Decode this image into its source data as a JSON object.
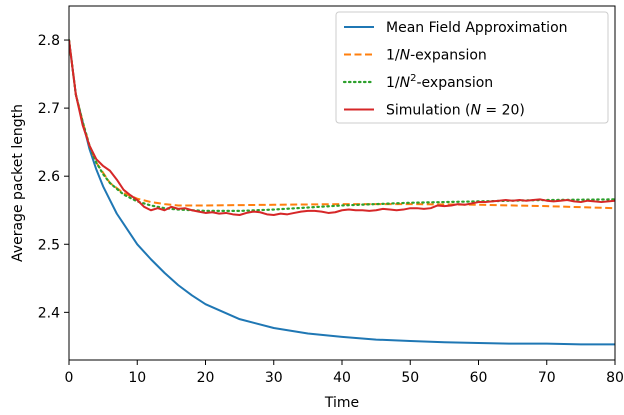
{
  "chart_data": {
    "type": "line",
    "title": "",
    "xlabel": "Time",
    "ylabel": "Average packet length",
    "xlim": [
      0,
      80
    ],
    "ylim": [
      2.33,
      2.85
    ],
    "xticks": [
      0,
      10,
      20,
      30,
      40,
      50,
      60,
      70,
      80
    ],
    "yticks": [
      2.4,
      2.5,
      2.6,
      2.7,
      2.8
    ],
    "grid": false,
    "legend_position": "top-right",
    "legend": [
      {
        "text": "Mean Field Approximation",
        "color": "#1f77b4",
        "style": "solid"
      },
      {
        "text": "1/N-expansion",
        "italic_part": "N",
        "color": "#ff7f0e",
        "style": "dashed"
      },
      {
        "text": "1/N²-expansion",
        "italic_part": "N",
        "superscript": "2",
        "color": "#2ca02c",
        "style": "dotted"
      },
      {
        "text": "Simulation (N = 20)",
        "italic_part": "N",
        "color": "#d62728",
        "style": "solid"
      }
    ],
    "series": [
      {
        "name": "Mean Field Approximation",
        "color": "#1f77b4",
        "style": "solid",
        "x": [
          0,
          1,
          2,
          3,
          4,
          5,
          6,
          7,
          8,
          10,
          12,
          14,
          16,
          18,
          20,
          25,
          30,
          35,
          40,
          45,
          50,
          55,
          60,
          65,
          70,
          75,
          80
        ],
        "y": [
          2.8,
          2.72,
          2.68,
          2.64,
          2.61,
          2.585,
          2.565,
          2.545,
          2.53,
          2.5,
          2.478,
          2.458,
          2.44,
          2.425,
          2.412,
          2.39,
          2.377,
          2.369,
          2.364,
          2.36,
          2.358,
          2.356,
          2.355,
          2.354,
          2.354,
          2.353,
          2.353
        ]
      },
      {
        "name": "1/N-expansion",
        "color": "#ff7f0e",
        "style": "dashed",
        "x": [
          0,
          1,
          2,
          3,
          4,
          5,
          6,
          8,
          10,
          12,
          14,
          16,
          20,
          30,
          40,
          50,
          60,
          70,
          80
        ],
        "y": [
          2.8,
          2.72,
          2.68,
          2.645,
          2.62,
          2.605,
          2.59,
          2.575,
          2.567,
          2.562,
          2.559,
          2.557,
          2.557,
          2.558,
          2.559,
          2.559,
          2.558,
          2.556,
          2.553
        ]
      },
      {
        "name": "1/N²-expansion",
        "color": "#2ca02c",
        "style": "dotted",
        "x": [
          0,
          1,
          2,
          3,
          4,
          5,
          6,
          8,
          10,
          12,
          14,
          16,
          20,
          25,
          30,
          35,
          40,
          50,
          60,
          70,
          80
        ],
        "y": [
          2.8,
          2.72,
          2.68,
          2.645,
          2.62,
          2.603,
          2.59,
          2.573,
          2.563,
          2.557,
          2.553,
          2.551,
          2.549,
          2.549,
          2.551,
          2.554,
          2.557,
          2.561,
          2.563,
          2.565,
          2.566
        ]
      },
      {
        "name": "Simulation (N = 20)",
        "color": "#d62728",
        "style": "solid",
        "x": [
          0,
          1,
          2,
          3,
          4,
          5,
          6,
          7,
          8,
          9,
          10,
          11,
          12,
          13,
          14,
          15,
          16,
          17,
          18,
          19,
          20,
          21,
          22,
          23,
          24,
          25,
          26,
          27,
          28,
          29,
          30,
          31,
          32,
          33,
          34,
          35,
          36,
          37,
          38,
          39,
          40,
          41,
          42,
          43,
          44,
          45,
          46,
          47,
          48,
          49,
          50,
          51,
          52,
          53,
          54,
          55,
          56,
          57,
          58,
          59,
          60,
          61,
          62,
          63,
          64,
          65,
          66,
          67,
          68,
          69,
          70,
          71,
          72,
          73,
          74,
          75,
          76,
          77,
          78,
          79,
          80
        ],
        "y": [
          2.8,
          2.72,
          2.675,
          2.645,
          2.625,
          2.615,
          2.608,
          2.595,
          2.58,
          2.572,
          2.565,
          2.555,
          2.55,
          2.553,
          2.55,
          2.555,
          2.552,
          2.553,
          2.55,
          2.548,
          2.546,
          2.547,
          2.545,
          2.546,
          2.544,
          2.543,
          2.546,
          2.548,
          2.547,
          2.544,
          2.543,
          2.545,
          2.544,
          2.546,
          2.548,
          2.549,
          2.549,
          2.548,
          2.546,
          2.547,
          2.55,
          2.551,
          2.55,
          2.55,
          2.549,
          2.55,
          2.552,
          2.551,
          2.55,
          2.551,
          2.553,
          2.553,
          2.552,
          2.553,
          2.557,
          2.556,
          2.557,
          2.559,
          2.558,
          2.56,
          2.562,
          2.562,
          2.563,
          2.564,
          2.565,
          2.564,
          2.565,
          2.564,
          2.565,
          2.566,
          2.564,
          2.563,
          2.564,
          2.565,
          2.563,
          2.562,
          2.564,
          2.563,
          2.562,
          2.563,
          2.564
        ]
      }
    ]
  }
}
